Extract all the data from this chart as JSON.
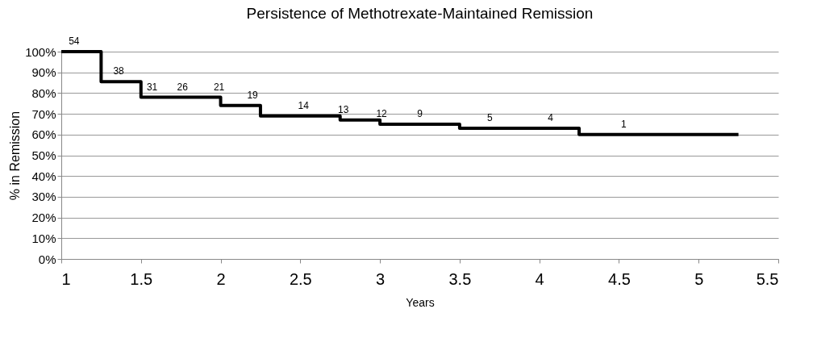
{
  "chart_data": {
    "type": "step",
    "title": "Persistence of Methotrexate-Maintained Remission",
    "xlabel": "Years",
    "ylabel": "% in Remission",
    "x": [
      1,
      1.25,
      1.5,
      2,
      2.25,
      2.75,
      3,
      3.5,
      4.25,
      5.25
    ],
    "series": [
      {
        "color": "#000000",
        "values": [
          100,
          85.5,
          78,
          74,
          69,
          67,
          65,
          63,
          60,
          60
        ]
      }
    ],
    "xlim": [
      1,
      5.5
    ],
    "xticks": [
      1,
      1.5,
      2,
      2.5,
      3,
      3.5,
      4,
      4.5,
      5,
      5.5
    ],
    "ylim": [
      0,
      100
    ],
    "yticks": [
      {
        "value": 0,
        "label": "0%"
      },
      {
        "value": 10,
        "label": "10%"
      },
      {
        "value": 20,
        "label": "20%"
      },
      {
        "value": 30,
        "label": "30%"
      },
      {
        "value": 40,
        "label": "40%"
      },
      {
        "value": 50,
        "label": "50%"
      },
      {
        "value": 60,
        "label": "60%"
      },
      {
        "value": 70,
        "label": "70%"
      },
      {
        "value": 80,
        "label": "80%"
      },
      {
        "value": 90,
        "label": "90%"
      },
      {
        "value": 100,
        "label": "100%"
      }
    ],
    "grid": "y",
    "marker": "none",
    "line_style": "solid",
    "annotations": [
      {
        "text": "54",
        "x": 1.08,
        "y": 100
      },
      {
        "text": "38",
        "x": 1.36,
        "y": 85.5
      },
      {
        "text": "31",
        "x": 1.57,
        "y": 78
      },
      {
        "text": "26",
        "x": 1.76,
        "y": 78
      },
      {
        "text": "21",
        "x": 1.99,
        "y": 78
      },
      {
        "text": "19",
        "x": 2.2,
        "y": 74
      },
      {
        "text": "14",
        "x": 2.52,
        "y": 69
      },
      {
        "text": "13",
        "x": 2.77,
        "y": 67
      },
      {
        "text": "12",
        "x": 3.01,
        "y": 65
      },
      {
        "text": "9",
        "x": 3.25,
        "y": 65
      },
      {
        "text": "5",
        "x": 3.69,
        "y": 63
      },
      {
        "text": "4",
        "x": 4.07,
        "y": 63
      },
      {
        "text": "1",
        "x": 4.53,
        "y": 60
      }
    ]
  }
}
